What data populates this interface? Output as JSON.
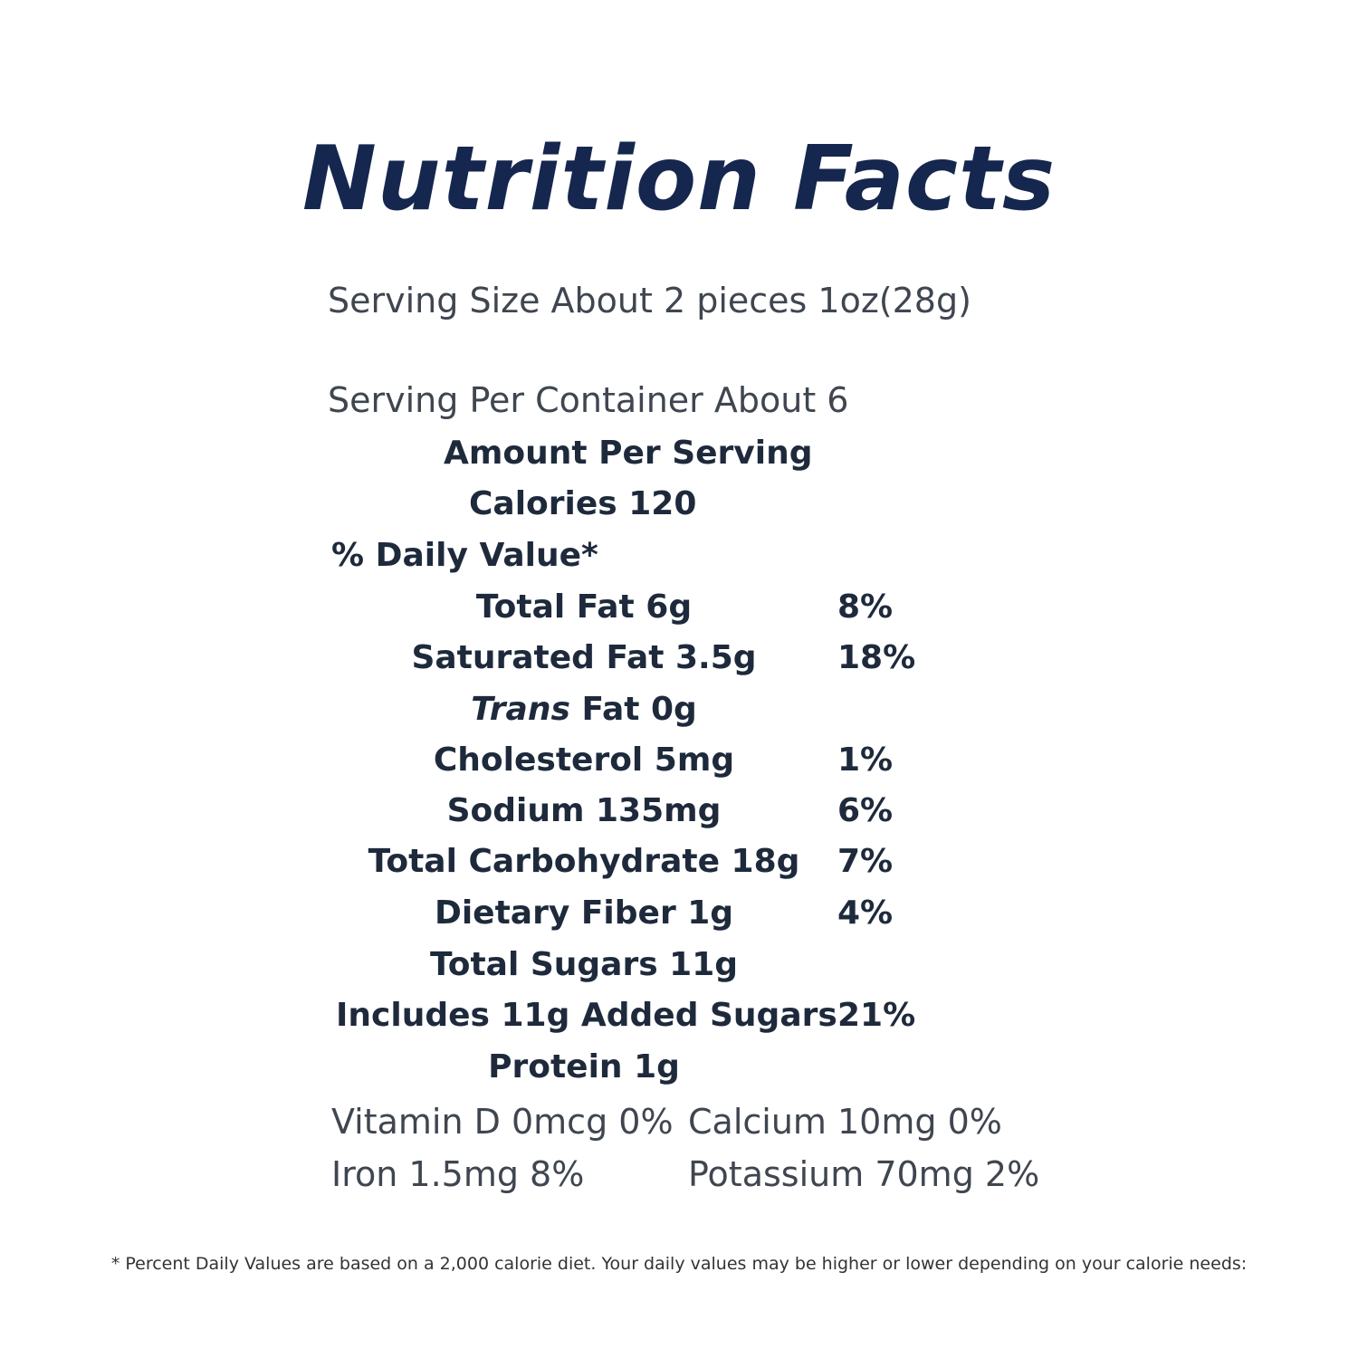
{
  "title": "Nutrition Facts",
  "serving_size": "Serving Size About 2 pieces 1oz(28g)",
  "servings_per_container": "Serving Per Container About 6",
  "amount_per_serving": "Amount Per Serving",
  "calories": "Calories 120",
  "daily_value_header": "% Daily Value*",
  "nutrients": [
    {
      "label": "Total Fat 6g",
      "dv": "8%"
    },
    {
      "label": "Saturated Fat 3.5g",
      "dv": "18%"
    },
    {
      "label_italic": "Trans",
      "label_rest": " Fat 0g",
      "dv": ""
    },
    {
      "label": "Cholesterol 5mg",
      "dv": "1%"
    },
    {
      "label": "Sodium 135mg",
      "dv": "6%"
    },
    {
      "label": "Total Carbohydrate 18g",
      "dv": "7%"
    },
    {
      "label": "Dietary Fiber 1g",
      "dv": "4%"
    },
    {
      "label": "Total Sugars 11g",
      "dv": ""
    },
    {
      "label": "Includes 11g Added Sugars",
      "dv": "21%"
    },
    {
      "label": "Protein 1g",
      "dv": ""
    }
  ],
  "micronutrients": {
    "vitamin_d": "Vitamin D 0mcg 0%",
    "calcium": "Calcium 10mg 0%",
    "iron": "Iron 1.5mg 8%",
    "potassium": "Potassium 70mg 2%"
  },
  "footnote": "* Percent Daily Values are based on a 2,000 calorie diet. Your daily values may be higher or lower depending on your calorie needs:"
}
